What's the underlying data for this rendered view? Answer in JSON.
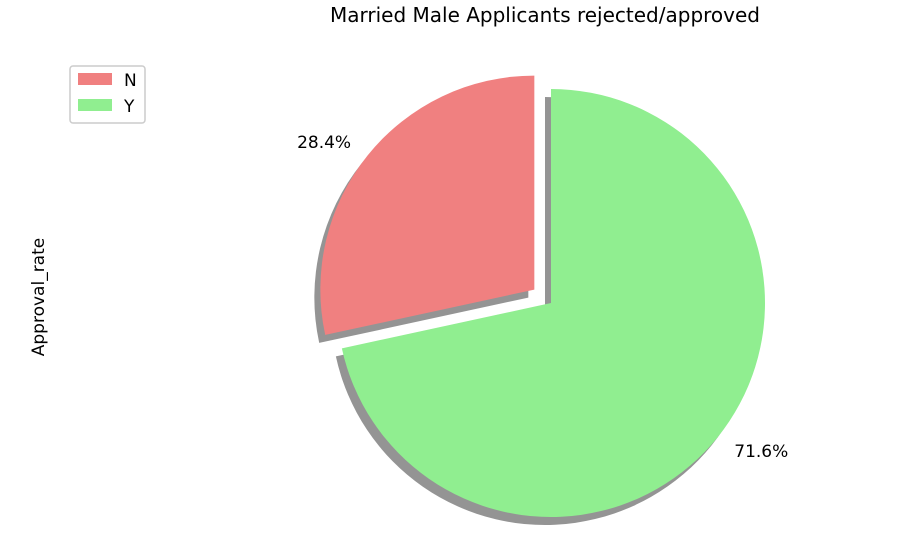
{
  "chart_data": {
    "type": "pie",
    "title": "Married Male Applicants rejected/approved",
    "ylabel": "Approval_rate",
    "categories": [
      "N",
      "Y"
    ],
    "values": [
      28.4,
      71.6
    ],
    "labels": [
      "28.4%",
      "71.6%"
    ],
    "colors": [
      "#f08080",
      "#90ee90"
    ],
    "explode": [
      0.1,
      0
    ],
    "shadow": true,
    "start_angle": 90,
    "legend": {
      "placement": "upper-left",
      "entries": [
        "N",
        "Y"
      ]
    }
  }
}
